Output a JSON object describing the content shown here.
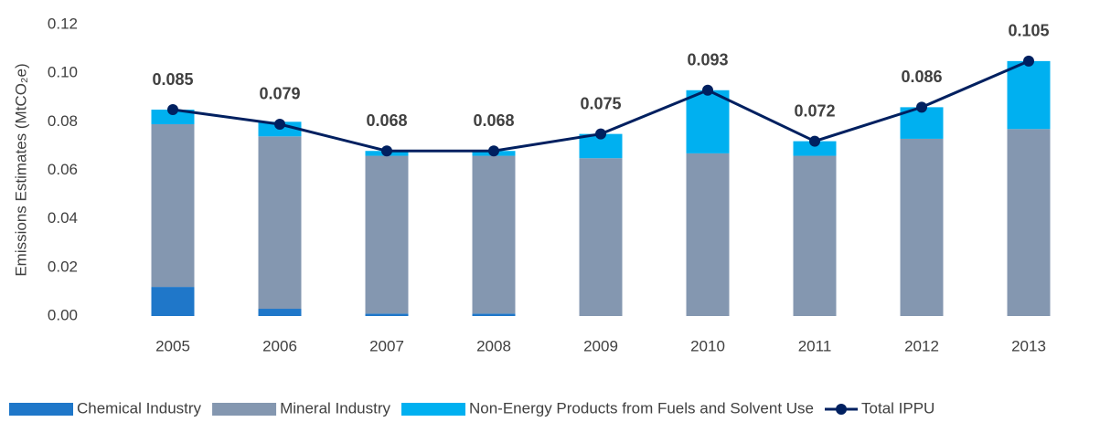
{
  "chart_data": {
    "type": "bar",
    "y_label": "Emissions Estimates (MtCO₂e)",
    "categories": [
      "2005",
      "2006",
      "2007",
      "2008",
      "2009",
      "2010",
      "2011",
      "2012",
      "2013"
    ],
    "series": [
      {
        "name": "Chemical Industry",
        "color": "#1f77c9",
        "values": [
          0.012,
          0.003,
          0.001,
          0.001,
          0,
          0,
          0,
          0,
          0
        ]
      },
      {
        "name": "Mineral Industry",
        "color": "#8497b0",
        "values": [
          0.067,
          0.071,
          0.065,
          0.065,
          0.065,
          0.067,
          0.066,
          0.073,
          0.077
        ]
      },
      {
        "name": "Non-Energy Products from Fuels and Solvent Use",
        "color": "#00b0f0",
        "values": [
          0.006,
          0.006,
          0.002,
          0.002,
          0.01,
          0.026,
          0.006,
          0.013,
          0.028
        ]
      },
      {
        "name": "Total IPPU",
        "type": "line",
        "color": "#002060",
        "values": [
          0.085,
          0.079,
          0.068,
          0.068,
          0.075,
          0.093,
          0.072,
          0.086,
          0.105
        ]
      }
    ],
    "ylim": [
      0,
      0.12
    ],
    "yticks": [
      {
        "value": 0,
        "label": "0.00"
      },
      {
        "value": 0.02,
        "label": "0.02"
      },
      {
        "value": 0.04,
        "label": "0.04"
      },
      {
        "value": 0.06,
        "label": "0.06"
      },
      {
        "value": 0.08,
        "label": "0.08"
      },
      {
        "value": 0.1,
        "label": "0.10"
      },
      {
        "value": 0.12,
        "label": "0.12"
      }
    ],
    "grid": false,
    "legend": "bottom"
  }
}
